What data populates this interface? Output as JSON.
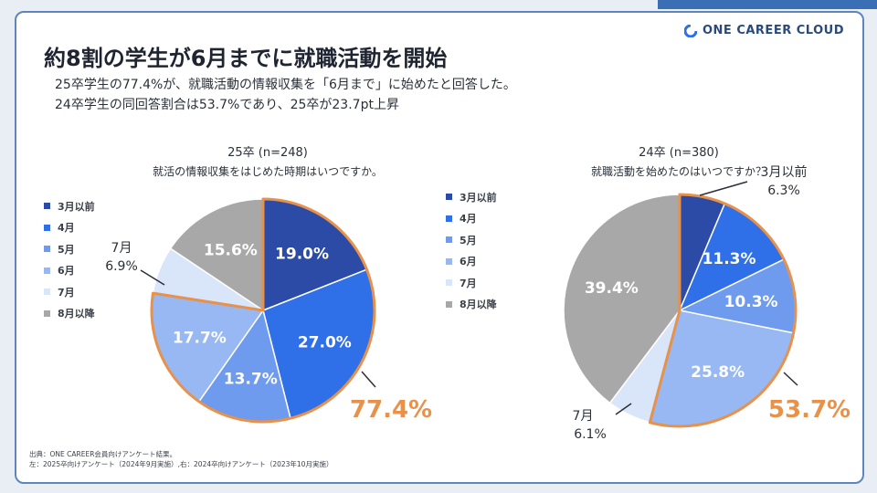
{
  "brand": {
    "name": "ONE CAREER CLOUD"
  },
  "title": "約8割の学生が6月までに就職活動を開始",
  "subtitle": {
    "line1": "25卒学生の77.4%が、就職活動の情報収集を「6月まで」に始めたと回答した。",
    "line2": "24卒学生の同回答割合は53.7%であり、25卒が23.7pt上昇"
  },
  "colors": {
    "c1": "#2c4ba6",
    "c2": "#2f6fe8",
    "c3": "#6f9bef",
    "c4": "#97b8f2",
    "c5": "#d9e5f8",
    "c6": "#a8a8a8",
    "highlight": "#e8914a"
  },
  "chart_data": [
    {
      "type": "pie",
      "title": "25卒 (n=248)",
      "subtitle": "就活の情報収集をはじめた時期はいつですか。",
      "categories": [
        "3月以前",
        "4月",
        "5月",
        "6月",
        "7月",
        "8月以降"
      ],
      "values": [
        19.0,
        27.0,
        13.7,
        17.7,
        6.9,
        15.6
      ],
      "labels": [
        "19.0%",
        "27.0%",
        "13.7%",
        "17.7%",
        "",
        "15.6%"
      ],
      "outside_label": {
        "top": "7月",
        "bottom": "6.9%"
      },
      "highlight_total": "77.4%"
    },
    {
      "type": "pie",
      "title": "24卒 (n=380)",
      "subtitle": "就職活動を始めたのはいつですか？",
      "categories": [
        "3月以前",
        "4月",
        "5月",
        "6月",
        "7月",
        "8月以降"
      ],
      "values": [
        6.3,
        11.3,
        10.3,
        25.8,
        6.1,
        39.4
      ],
      "labels": [
        "",
        "11.3%",
        "10.3%",
        "25.8%",
        "",
        "39.4%"
      ],
      "outside_label_a": {
        "top": "3月以前",
        "bottom": "6.3%"
      },
      "outside_label_b": {
        "top": "7月",
        "bottom": "6.1%"
      },
      "highlight_total": "53.7%"
    }
  ],
  "legend": [
    "3月以前",
    "4月",
    "5月",
    "6月",
    "7月",
    "8月以降"
  ],
  "footnote": {
    "line1": "出典：ONE CAREER会員向けアンケート結果。",
    "line2": "左：2025卒向けアンケート（2024年9月実施）,右：2024卒向けアンケート（2023年10月実施）"
  }
}
